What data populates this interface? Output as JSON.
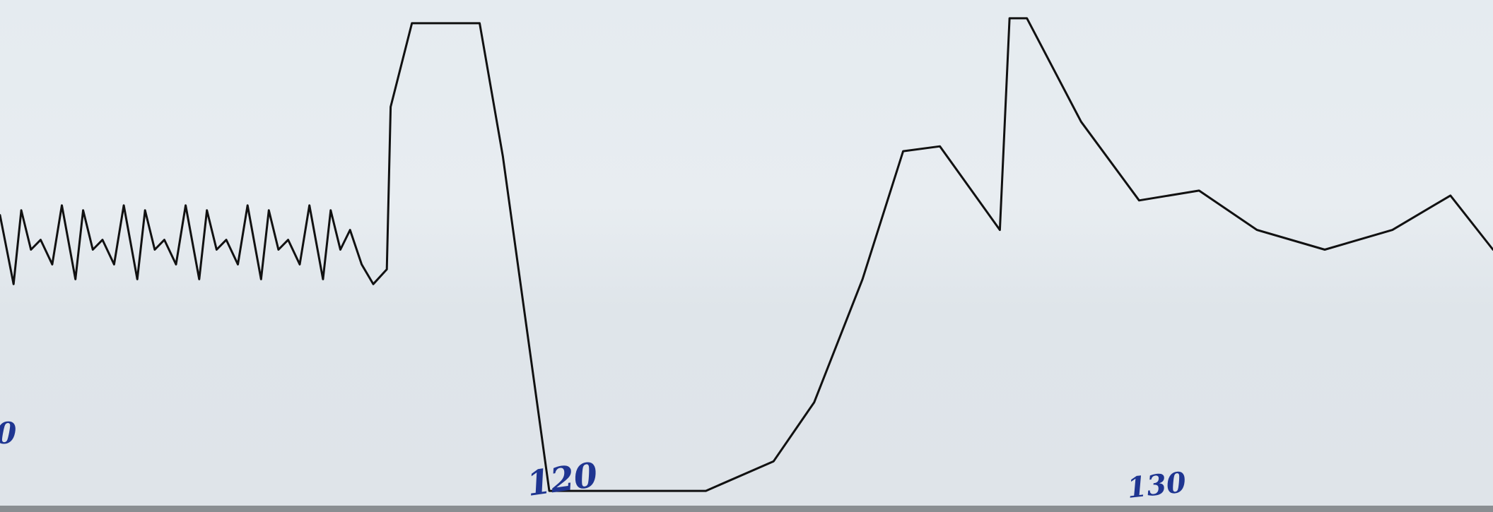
{
  "chart_data": {
    "type": "line",
    "title": "",
    "xlabel": "",
    "ylabel": "",
    "handwritten_marks": [
      "120",
      "130"
    ],
    "partial_mark_left_edge": "0",
    "series": [
      {
        "values": [
          [
            0.0,
            0.58
          ],
          [
            0.7,
            0.44
          ],
          [
            1.1,
            0.59
          ],
          [
            1.6,
            0.51
          ],
          [
            2.1,
            0.53
          ],
          [
            2.7,
            0.48
          ],
          [
            3.2,
            0.6
          ],
          [
            3.9,
            0.45
          ],
          [
            4.3,
            0.59
          ],
          [
            4.8,
            0.51
          ],
          [
            5.3,
            0.53
          ],
          [
            5.9,
            0.48
          ],
          [
            6.4,
            0.6
          ],
          [
            7.1,
            0.45
          ],
          [
            7.5,
            0.59
          ],
          [
            8.0,
            0.51
          ],
          [
            8.5,
            0.53
          ],
          [
            9.1,
            0.48
          ],
          [
            9.6,
            0.6
          ],
          [
            10.3,
            0.45
          ],
          [
            10.7,
            0.59
          ],
          [
            11.2,
            0.51
          ],
          [
            11.7,
            0.53
          ],
          [
            12.3,
            0.48
          ],
          [
            12.8,
            0.6
          ],
          [
            13.5,
            0.45
          ],
          [
            13.9,
            0.59
          ],
          [
            14.4,
            0.51
          ],
          [
            14.9,
            0.53
          ],
          [
            15.5,
            0.48
          ],
          [
            16.0,
            0.6
          ],
          [
            16.7,
            0.45
          ],
          [
            17.1,
            0.59
          ],
          [
            17.6,
            0.51
          ],
          [
            18.1,
            0.55
          ],
          [
            18.7,
            0.48
          ],
          [
            19.3,
            0.44
          ],
          [
            20.0,
            0.47
          ],
          [
            20.2,
            0.8
          ],
          [
            21.3,
            0.97
          ],
          [
            24.8,
            0.97
          ],
          [
            26.0,
            0.7
          ],
          [
            28.4,
            0.02
          ],
          [
            36.5,
            0.02
          ],
          [
            40.0,
            0.08
          ],
          [
            42.1,
            0.2
          ],
          [
            44.6,
            0.45
          ],
          [
            46.7,
            0.71
          ],
          [
            48.6,
            0.72
          ],
          [
            51.7,
            0.55
          ],
          [
            52.2,
            0.98
          ],
          [
            53.1,
            0.98
          ],
          [
            55.9,
            0.77
          ],
          [
            58.9,
            0.61
          ],
          [
            62.0,
            0.63
          ],
          [
            65.0,
            0.55
          ],
          [
            68.5,
            0.51
          ],
          [
            72.0,
            0.55
          ],
          [
            75.0,
            0.62
          ],
          [
            77.2,
            0.51
          ]
        ]
      }
    ]
  }
}
